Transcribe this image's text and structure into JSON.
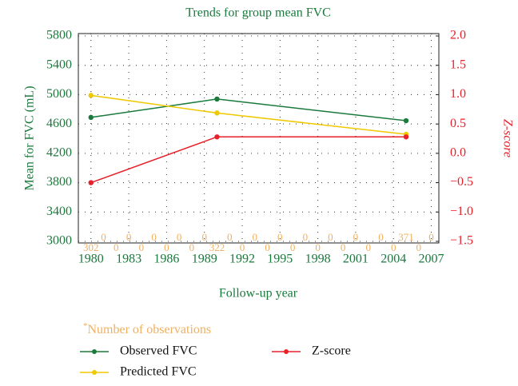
{
  "chart_data": {
    "type": "line",
    "title": "Trends for group mean FVC",
    "x_label": "Follow-up year",
    "y_label": "Mean for FVC (mL)",
    "y2_label": "Z-score",
    "x": [
      1980,
      1990,
      2005
    ],
    "series": [
      {
        "name": "Observed FVC",
        "color": "#1a7a3c",
        "values": [
          4690,
          4940,
          4645
        ]
      },
      {
        "name": "Predicted FVC",
        "color": "#f0c800",
        "values": [
          4990,
          4750,
          4460
        ]
      },
      {
        "name": "Z-score",
        "color": "#e8202a",
        "axis": "y2",
        "values": [
          -0.5,
          0.28,
          0.28
        ]
      }
    ],
    "xlim": [
      1979,
      2007.6
    ],
    "xticks": [
      1980,
      1983,
      1986,
      1989,
      1992,
      1995,
      1998,
      2001,
      2004,
      2007
    ],
    "ylim": [
      3000,
      5800
    ],
    "yticks": [
      3000,
      3400,
      3800,
      4200,
      4600,
      5000,
      5400,
      5800
    ],
    "y2lim": [
      -1.5,
      2.0
    ],
    "y2ticks": [
      {
        "value": -1.5,
        "label": "−1.5"
      },
      {
        "value": -1.0,
        "label": "−1.0"
      },
      {
        "value": -0.5,
        "label": "−0.5"
      },
      {
        "value": 0.0,
        "label": "0.0"
      },
      {
        "value": 0.5,
        "label": "0.5"
      },
      {
        "value": 1.0,
        "label": "1.0"
      },
      {
        "value": 1.5,
        "label": "1.5"
      },
      {
        "value": 2.0,
        "label": "2.0"
      }
    ],
    "grid": true,
    "observations": {
      "label": "Number of observations",
      "marker": "*",
      "color": "#f0b060",
      "counts": [
        302,
        0,
        0,
        0,
        0,
        0,
        0,
        0,
        0,
        0,
        322,
        0,
        0,
        0,
        0,
        0,
        0,
        0,
        0,
        0,
        0,
        0,
        0,
        0,
        0,
        371,
        0,
        0
      ]
    }
  }
}
